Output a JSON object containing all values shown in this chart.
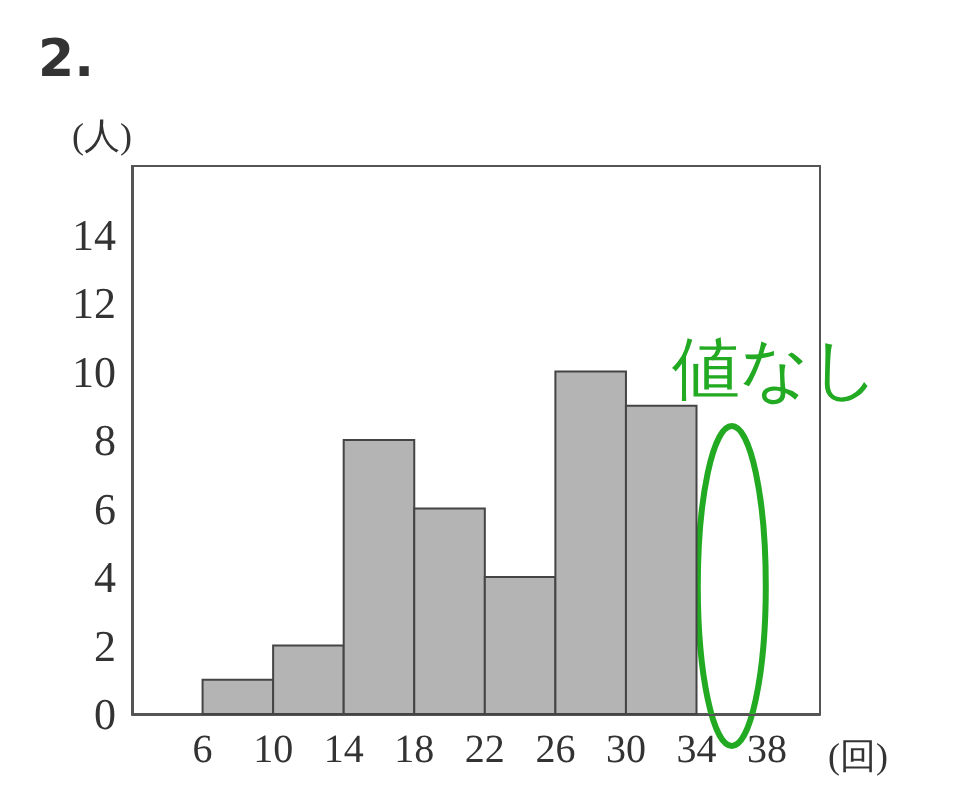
{
  "chart_data": {
    "type": "histogram",
    "title": "2.",
    "ylabel": "(人)",
    "xlabel": "(回)",
    "bins": [
      6,
      10,
      14,
      18,
      22,
      26,
      30,
      34,
      38
    ],
    "values": [
      1,
      2,
      8,
      6,
      4,
      10,
      9,
      0
    ],
    "color": "#b4b4b4",
    "xlim": [
      2,
      41
    ],
    "xticks": [
      6,
      10,
      14,
      18,
      22,
      26,
      30,
      34,
      38
    ],
    "ylim": [
      0,
      16
    ],
    "yticks": [
      0,
      2,
      4,
      6,
      8,
      10,
      12,
      14
    ],
    "grid": false,
    "annotations": [
      "値なし"
    ]
  }
}
